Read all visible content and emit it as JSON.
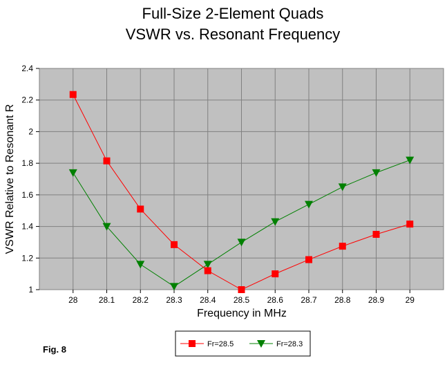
{
  "chart_data": {
    "type": "line",
    "title_lines": [
      "Full-Size 2-Element Quads",
      "VSWR vs. Resonant Frequency"
    ],
    "xlabel": "Frequency in MHz",
    "ylabel": "VSWR Relative to Resonant R",
    "x": [
      28,
      28.1,
      28.2,
      28.3,
      28.4,
      28.5,
      28.6,
      28.7,
      28.8,
      28.9,
      29
    ],
    "x_tick_labels": [
      "28",
      "28.1",
      "28.2",
      "28.3",
      "28.4",
      "28.5",
      "28.6",
      "28.7",
      "28.8",
      "28.9",
      "29"
    ],
    "xlim": [
      27.9,
      29.1
    ],
    "ylim": [
      1,
      2.4
    ],
    "y_ticks": [
      1,
      1.2,
      1.4,
      1.6,
      1.8,
      2,
      2.2,
      2.4
    ],
    "y_tick_labels": [
      "1",
      "1.2",
      "1.4",
      "1.6",
      "1.8",
      "2",
      "2.2",
      "2.4"
    ],
    "grid": true,
    "legend_position": "bottom-center",
    "series": [
      {
        "name": "Fr=28.5",
        "color": "#ff0000",
        "marker": "square",
        "values": [
          2.235,
          1.815,
          1.51,
          1.285,
          1.12,
          1.0,
          1.1,
          1.19,
          1.275,
          1.35,
          1.415
        ]
      },
      {
        "name": "Fr=28.3",
        "color": "#008000",
        "marker": "triangle-down",
        "values": [
          1.74,
          1.4,
          1.16,
          1.02,
          1.16,
          1.3,
          1.43,
          1.54,
          1.65,
          1.74,
          1.82
        ]
      }
    ]
  },
  "annotations": {
    "fig_label": "Fig. 8"
  }
}
